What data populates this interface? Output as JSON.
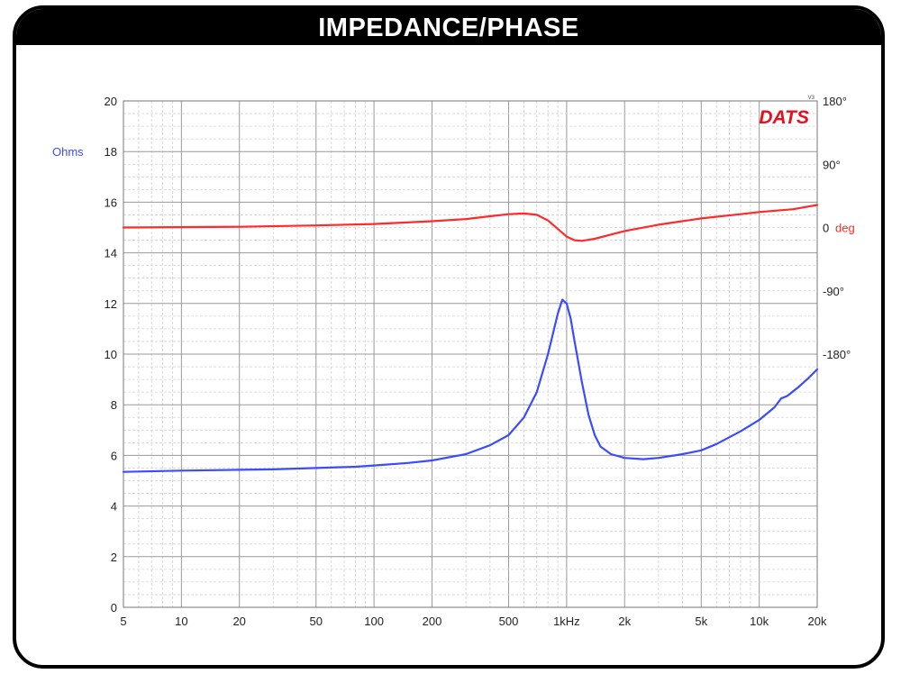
{
  "title": "IMPEDANCE/PHASE",
  "brand": "DATS",
  "brand_super": "V3",
  "chart_data": {
    "type": "line",
    "x_scale": "log",
    "xlim": [
      5,
      20000
    ],
    "x_ticks": [
      {
        "v": 5,
        "t": "5"
      },
      {
        "v": 10,
        "t": "10"
      },
      {
        "v": 20,
        "t": "20"
      },
      {
        "v": 50,
        "t": "50"
      },
      {
        "v": 100,
        "t": "100"
      },
      {
        "v": 200,
        "t": "200"
      },
      {
        "v": 500,
        "t": "500"
      },
      {
        "v": 1000,
        "t": "1kHz"
      },
      {
        "v": 2000,
        "t": "2k"
      },
      {
        "v": 5000,
        "t": "5k"
      },
      {
        "v": 10000,
        "t": "10k"
      },
      {
        "v": 20000,
        "t": "20k"
      }
    ],
    "ylim": [
      0,
      20
    ],
    "y_ticks": [
      "0",
      "2",
      "4",
      "6",
      "8",
      "10",
      "12",
      "14",
      "16",
      "18",
      "20"
    ],
    "ylabel": "Ohms",
    "y2lim": [
      -540,
      180
    ],
    "y2_ticks": [
      {
        "v": 180,
        "t": "180°"
      },
      {
        "v": 90,
        "t": "90°"
      },
      {
        "v": 0,
        "t": "0"
      },
      {
        "v": -90,
        "t": "-90°"
      },
      {
        "v": -180,
        "t": "-180°"
      }
    ],
    "y2label": "deg",
    "grid": true,
    "series": [
      {
        "role": "impedance",
        "color": "#3b4bff",
        "points": [
          [
            5,
            5.35
          ],
          [
            10,
            5.4
          ],
          [
            20,
            5.43
          ],
          [
            30,
            5.45
          ],
          [
            50,
            5.5
          ],
          [
            80,
            5.55
          ],
          [
            100,
            5.6
          ],
          [
            150,
            5.7
          ],
          [
            200,
            5.8
          ],
          [
            300,
            6.05
          ],
          [
            400,
            6.4
          ],
          [
            500,
            6.8
          ],
          [
            600,
            7.5
          ],
          [
            700,
            8.5
          ],
          [
            800,
            10.0
          ],
          [
            900,
            11.6
          ],
          [
            950,
            12.15
          ],
          [
            1000,
            12.0
          ],
          [
            1050,
            11.4
          ],
          [
            1100,
            10.5
          ],
          [
            1200,
            8.9
          ],
          [
            1300,
            7.6
          ],
          [
            1400,
            6.8
          ],
          [
            1500,
            6.35
          ],
          [
            1700,
            6.05
          ],
          [
            2000,
            5.9
          ],
          [
            2500,
            5.85
          ],
          [
            3000,
            5.9
          ],
          [
            4000,
            6.05
          ],
          [
            5000,
            6.2
          ],
          [
            6000,
            6.45
          ],
          [
            8000,
            6.95
          ],
          [
            10000,
            7.4
          ],
          [
            12000,
            7.9
          ],
          [
            13000,
            8.25
          ],
          [
            14000,
            8.35
          ],
          [
            16000,
            8.7
          ],
          [
            18000,
            9.05
          ],
          [
            20000,
            9.4
          ]
        ]
      },
      {
        "role": "phase",
        "color": "#ff2a2a",
        "points": [
          [
            5,
            0
          ],
          [
            20,
            1
          ],
          [
            50,
            3
          ],
          [
            100,
            5
          ],
          [
            200,
            9
          ],
          [
            300,
            12
          ],
          [
            400,
            16
          ],
          [
            500,
            19
          ],
          [
            600,
            20
          ],
          [
            700,
            18
          ],
          [
            800,
            10
          ],
          [
            900,
            -2
          ],
          [
            1000,
            -13
          ],
          [
            1100,
            -18
          ],
          [
            1200,
            -19
          ],
          [
            1400,
            -16
          ],
          [
            1700,
            -10
          ],
          [
            2000,
            -5
          ],
          [
            3000,
            4
          ],
          [
            5000,
            13
          ],
          [
            8000,
            19
          ],
          [
            10000,
            22
          ],
          [
            15000,
            26
          ],
          [
            20000,
            32
          ]
        ]
      }
    ]
  }
}
